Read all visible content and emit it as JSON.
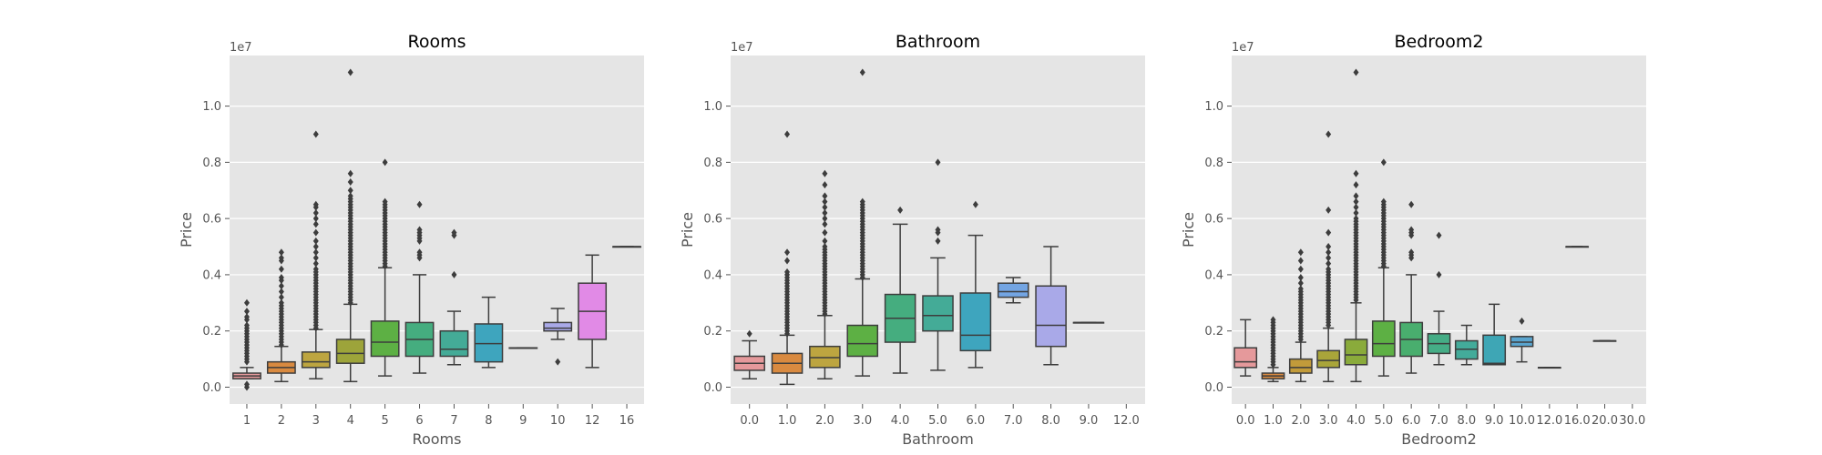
{
  "figure": {
    "background": "#ffffff",
    "axes_facecolor": "#e5e5e5",
    "grid": true,
    "grid_color": "#ffffff"
  },
  "chart_data": [
    {
      "type": "box",
      "title": "Rooms",
      "xlabel": "Rooms",
      "ylabel": "Price",
      "y_offset_label": "1e7",
      "ylim": [
        -0.06,
        1.18
      ],
      "yticks": [
        0.0,
        0.2,
        0.4,
        0.6,
        0.8,
        1.0
      ],
      "ytick_labels": [
        "0.0",
        "0.2",
        "0.4",
        "0.6",
        "0.8",
        "1.0"
      ],
      "categories": [
        "1",
        "2",
        "3",
        "4",
        "5",
        "6",
        "7",
        "8",
        "9",
        "10",
        "12",
        "16"
      ],
      "boxes": [
        {
          "color": "#e5999b",
          "whislo": 0.03,
          "q1": 0.03,
          "med": 0.04,
          "q3": 0.05,
          "whishi": 0.07,
          "fliers": [
            0.0,
            0.01,
            0.09,
            0.1,
            0.11,
            0.12,
            0.13,
            0.14,
            0.15,
            0.16,
            0.17,
            0.18,
            0.19,
            0.2,
            0.21,
            0.22,
            0.24,
            0.25,
            0.27,
            0.3
          ]
        },
        {
          "color": "#d98a40",
          "whislo": 0.02,
          "q1": 0.05,
          "med": 0.07,
          "q3": 0.09,
          "whishi": 0.145,
          "fliers": [
            0.15,
            0.16,
            0.17,
            0.18,
            0.19,
            0.2,
            0.21,
            0.22,
            0.23,
            0.24,
            0.25,
            0.26,
            0.27,
            0.28,
            0.29,
            0.3,
            0.32,
            0.34,
            0.36,
            0.38,
            0.39,
            0.42,
            0.45,
            0.46,
            0.48
          ]
        },
        {
          "color": "#bda540",
          "whislo": 0.03,
          "q1": 0.07,
          "med": 0.09,
          "q3": 0.125,
          "whishi": 0.205,
          "fliers": [
            0.21,
            0.22,
            0.23,
            0.24,
            0.25,
            0.26,
            0.27,
            0.28,
            0.29,
            0.3,
            0.31,
            0.32,
            0.33,
            0.34,
            0.35,
            0.36,
            0.37,
            0.38,
            0.39,
            0.4,
            0.41,
            0.42,
            0.44,
            0.46,
            0.48,
            0.5,
            0.52,
            0.55,
            0.58,
            0.6,
            0.62,
            0.64,
            0.65,
            0.9
          ]
        },
        {
          "color": "#9da43a",
          "whislo": 0.02,
          "q1": 0.085,
          "med": 0.12,
          "q3": 0.17,
          "whishi": 0.295,
          "fliers": [
            0.3,
            0.31,
            0.32,
            0.33,
            0.34,
            0.35,
            0.36,
            0.37,
            0.38,
            0.39,
            0.4,
            0.41,
            0.42,
            0.43,
            0.44,
            0.45,
            0.46,
            0.47,
            0.48,
            0.49,
            0.5,
            0.51,
            0.52,
            0.53,
            0.54,
            0.55,
            0.56,
            0.57,
            0.58,
            0.59,
            0.6,
            0.61,
            0.62,
            0.63,
            0.64,
            0.65,
            0.66,
            0.67,
            0.68,
            0.7,
            0.73,
            0.76,
            1.12
          ]
        },
        {
          "color": "#5db044",
          "whislo": 0.04,
          "q1": 0.11,
          "med": 0.16,
          "q3": 0.235,
          "whishi": 0.425,
          "fliers": [
            0.43,
            0.44,
            0.45,
            0.46,
            0.47,
            0.48,
            0.49,
            0.5,
            0.51,
            0.52,
            0.53,
            0.54,
            0.55,
            0.56,
            0.57,
            0.58,
            0.59,
            0.6,
            0.61,
            0.62,
            0.63,
            0.64,
            0.65,
            0.66,
            0.8
          ]
        },
        {
          "color": "#45ad7f",
          "whislo": 0.05,
          "q1": 0.11,
          "med": 0.17,
          "q3": 0.23,
          "whishi": 0.4,
          "fliers": [
            0.46,
            0.47,
            0.48,
            0.52,
            0.53,
            0.54,
            0.55,
            0.56,
            0.65
          ]
        },
        {
          "color": "#44ab97",
          "whislo": 0.08,
          "q1": 0.11,
          "med": 0.135,
          "q3": 0.2,
          "whishi": 0.27,
          "fliers": [
            0.4,
            0.54,
            0.55
          ]
        },
        {
          "color": "#3ea5be",
          "whislo": 0.07,
          "q1": 0.09,
          "med": 0.155,
          "q3": 0.225,
          "whishi": 0.32,
          "fliers": []
        },
        {
          "color": "#73a5e3",
          "whislo": 0.14,
          "q1": 0.14,
          "med": 0.14,
          "q3": 0.14,
          "whishi": 0.14,
          "fliers": []
        },
        {
          "color": "#a9a9e8",
          "whislo": 0.17,
          "q1": 0.2,
          "med": 0.21,
          "q3": 0.23,
          "whishi": 0.28,
          "fliers": [
            0.09
          ]
        },
        {
          "color": "#e18ae6",
          "whislo": 0.07,
          "q1": 0.17,
          "med": 0.27,
          "q3": 0.37,
          "whishi": 0.47,
          "fliers": []
        },
        {
          "color": "#e89ac3",
          "whislo": 0.5,
          "q1": 0.5,
          "med": 0.5,
          "q3": 0.5,
          "whishi": 0.5,
          "fliers": []
        }
      ]
    },
    {
      "type": "box",
      "title": "Bathroom",
      "xlabel": "Bathroom",
      "ylabel": "Price",
      "y_offset_label": "1e7",
      "ylim": [
        -0.06,
        1.18
      ],
      "yticks": [
        0.0,
        0.2,
        0.4,
        0.6,
        0.8,
        1.0
      ],
      "ytick_labels": [
        "0.0",
        "0.2",
        "0.4",
        "0.6",
        "0.8",
        "1.0"
      ],
      "categories": [
        "0.0",
        "1.0",
        "2.0",
        "3.0",
        "4.0",
        "5.0",
        "6.0",
        "7.0",
        "8.0",
        "9.0",
        "12.0"
      ],
      "boxes": [
        {
          "color": "#e5999b",
          "whislo": 0.03,
          "q1": 0.06,
          "med": 0.085,
          "q3": 0.11,
          "whishi": 0.165,
          "fliers": [
            0.19
          ]
        },
        {
          "color": "#d98a40",
          "whislo": 0.01,
          "q1": 0.05,
          "med": 0.085,
          "q3": 0.12,
          "whishi": 0.185,
          "fliers": [
            0.19,
            0.2,
            0.21,
            0.22,
            0.23,
            0.24,
            0.25,
            0.26,
            0.27,
            0.28,
            0.29,
            0.3,
            0.31,
            0.32,
            0.33,
            0.34,
            0.35,
            0.36,
            0.37,
            0.38,
            0.39,
            0.4,
            0.41,
            0.45,
            0.48,
            0.9
          ]
        },
        {
          "color": "#bda540",
          "whislo": 0.03,
          "q1": 0.07,
          "med": 0.105,
          "q3": 0.145,
          "whishi": 0.255,
          "fliers": [
            0.26,
            0.27,
            0.28,
            0.29,
            0.3,
            0.31,
            0.32,
            0.33,
            0.34,
            0.35,
            0.36,
            0.37,
            0.38,
            0.39,
            0.4,
            0.41,
            0.42,
            0.43,
            0.44,
            0.45,
            0.46,
            0.47,
            0.48,
            0.49,
            0.5,
            0.52,
            0.55,
            0.58,
            0.6,
            0.62,
            0.64,
            0.66,
            0.68,
            0.72,
            0.76
          ]
        },
        {
          "color": "#5db044",
          "whislo": 0.04,
          "q1": 0.11,
          "med": 0.155,
          "q3": 0.22,
          "whishi": 0.385,
          "fliers": [
            0.39,
            0.4,
            0.41,
            0.42,
            0.43,
            0.44,
            0.45,
            0.46,
            0.47,
            0.48,
            0.49,
            0.5,
            0.51,
            0.52,
            0.53,
            0.54,
            0.55,
            0.56,
            0.57,
            0.58,
            0.59,
            0.6,
            0.61,
            0.62,
            0.63,
            0.64,
            0.65,
            0.66,
            1.12
          ]
        },
        {
          "color": "#45ad7f",
          "whislo": 0.05,
          "q1": 0.16,
          "med": 0.245,
          "q3": 0.33,
          "whishi": 0.58,
          "fliers": [
            0.63
          ]
        },
        {
          "color": "#44ab97",
          "whislo": 0.06,
          "q1": 0.2,
          "med": 0.255,
          "q3": 0.325,
          "whishi": 0.46,
          "fliers": [
            0.52,
            0.55,
            0.56,
            0.8
          ]
        },
        {
          "color": "#3ea5be",
          "whislo": 0.07,
          "q1": 0.13,
          "med": 0.185,
          "q3": 0.335,
          "whishi": 0.54,
          "fliers": [
            0.65
          ]
        },
        {
          "color": "#73a5e3",
          "whislo": 0.3,
          "q1": 0.32,
          "med": 0.34,
          "q3": 0.37,
          "whishi": 0.39,
          "fliers": []
        },
        {
          "color": "#a9a9e8",
          "whislo": 0.08,
          "q1": 0.145,
          "med": 0.22,
          "q3": 0.36,
          "whishi": 0.5,
          "fliers": []
        },
        {
          "color": "#e18ae6",
          "whislo": 0.23,
          "q1": 0.23,
          "med": 0.23,
          "q3": 0.23,
          "whishi": 0.23,
          "fliers": []
        },
        null
      ]
    },
    {
      "type": "box",
      "title": "Bedroom2",
      "xlabel": "Bedroom2",
      "ylabel": "Price",
      "y_offset_label": "1e7",
      "ylim": [
        -0.06,
        1.18
      ],
      "yticks": [
        0.0,
        0.2,
        0.4,
        0.6,
        0.8,
        1.0
      ],
      "ytick_labels": [
        "0.0",
        "0.2",
        "0.4",
        "0.6",
        "0.8",
        "1.0"
      ],
      "categories": [
        "0.0",
        "1.0",
        "2.0",
        "3.0",
        "4.0",
        "5.0",
        "6.0",
        "7.0",
        "8.0",
        "9.0",
        "10.0",
        "12.0",
        "16.0",
        "20.0",
        "30.0"
      ],
      "boxes": [
        {
          "color": "#e5999b",
          "whislo": 0.04,
          "q1": 0.07,
          "med": 0.09,
          "q3": 0.14,
          "whishi": 0.24,
          "fliers": []
        },
        {
          "color": "#d98a40",
          "whislo": 0.02,
          "q1": 0.03,
          "med": 0.04,
          "q3": 0.05,
          "whishi": 0.07,
          "fliers": [
            0.08,
            0.09,
            0.1,
            0.11,
            0.12,
            0.13,
            0.14,
            0.15,
            0.16,
            0.17,
            0.18,
            0.19,
            0.2,
            0.21,
            0.22,
            0.23,
            0.24
          ]
        },
        {
          "color": "#c29b3a",
          "whislo": 0.02,
          "q1": 0.05,
          "med": 0.07,
          "q3": 0.1,
          "whishi": 0.16,
          "fliers": [
            0.17,
            0.18,
            0.19,
            0.2,
            0.21,
            0.22,
            0.23,
            0.24,
            0.25,
            0.26,
            0.27,
            0.28,
            0.29,
            0.3,
            0.31,
            0.32,
            0.33,
            0.34,
            0.35,
            0.37,
            0.39,
            0.42,
            0.45,
            0.48
          ]
        },
        {
          "color": "#a9a53a",
          "whislo": 0.02,
          "q1": 0.07,
          "med": 0.095,
          "q3": 0.13,
          "whishi": 0.21,
          "fliers": [
            0.22,
            0.23,
            0.24,
            0.25,
            0.26,
            0.27,
            0.28,
            0.29,
            0.3,
            0.31,
            0.32,
            0.33,
            0.34,
            0.35,
            0.36,
            0.37,
            0.38,
            0.39,
            0.4,
            0.41,
            0.42,
            0.44,
            0.46,
            0.48,
            0.5,
            0.55,
            0.63,
            0.9
          ]
        },
        {
          "color": "#8aab3b",
          "whislo": 0.02,
          "q1": 0.08,
          "med": 0.115,
          "q3": 0.17,
          "whishi": 0.3,
          "fliers": [
            0.31,
            0.32,
            0.33,
            0.34,
            0.35,
            0.36,
            0.37,
            0.38,
            0.39,
            0.4,
            0.41,
            0.42,
            0.43,
            0.44,
            0.45,
            0.46,
            0.47,
            0.48,
            0.49,
            0.5,
            0.51,
            0.52,
            0.53,
            0.54,
            0.55,
            0.56,
            0.57,
            0.58,
            0.59,
            0.6,
            0.62,
            0.64,
            0.66,
            0.68,
            0.72,
            0.76,
            1.12
          ]
        },
        {
          "color": "#5db044",
          "whislo": 0.04,
          "q1": 0.11,
          "med": 0.155,
          "q3": 0.235,
          "whishi": 0.425,
          "fliers": [
            0.43,
            0.44,
            0.45,
            0.46,
            0.47,
            0.48,
            0.49,
            0.5,
            0.51,
            0.52,
            0.53,
            0.54,
            0.55,
            0.56,
            0.57,
            0.58,
            0.59,
            0.6,
            0.61,
            0.62,
            0.63,
            0.64,
            0.65,
            0.66,
            0.8
          ]
        },
        {
          "color": "#49ae6e",
          "whislo": 0.05,
          "q1": 0.11,
          "med": 0.17,
          "q3": 0.23,
          "whishi": 0.4,
          "fliers": [
            0.46,
            0.47,
            0.48,
            0.54,
            0.55,
            0.56,
            0.65
          ]
        },
        {
          "color": "#45ad86",
          "whislo": 0.08,
          "q1": 0.12,
          "med": 0.155,
          "q3": 0.19,
          "whishi": 0.27,
          "fliers": [
            0.4,
            0.54
          ]
        },
        {
          "color": "#43ab9a",
          "whislo": 0.08,
          "q1": 0.1,
          "med": 0.135,
          "q3": 0.165,
          "whishi": 0.22,
          "fliers": []
        },
        {
          "color": "#3ea6b5",
          "whislo": 0.08,
          "q1": 0.08,
          "med": 0.085,
          "q3": 0.185,
          "whishi": 0.295,
          "fliers": []
        },
        {
          "color": "#5aa5cf",
          "whislo": 0.09,
          "q1": 0.145,
          "med": 0.16,
          "q3": 0.18,
          "whishi": 0.18,
          "fliers": [
            0.235
          ]
        },
        {
          "color": "#7f9fe3",
          "whislo": 0.07,
          "q1": 0.07,
          "med": 0.07,
          "q3": 0.07,
          "whishi": 0.07,
          "fliers": []
        },
        {
          "color": "#a9a0e8",
          "whislo": 0.5,
          "q1": 0.5,
          "med": 0.5,
          "q3": 0.5,
          "whishi": 0.5,
          "fliers": []
        },
        {
          "color": "#d18ae6",
          "whislo": 0.165,
          "q1": 0.165,
          "med": 0.165,
          "q3": 0.165,
          "whishi": 0.165,
          "fliers": []
        },
        null
      ]
    }
  ]
}
